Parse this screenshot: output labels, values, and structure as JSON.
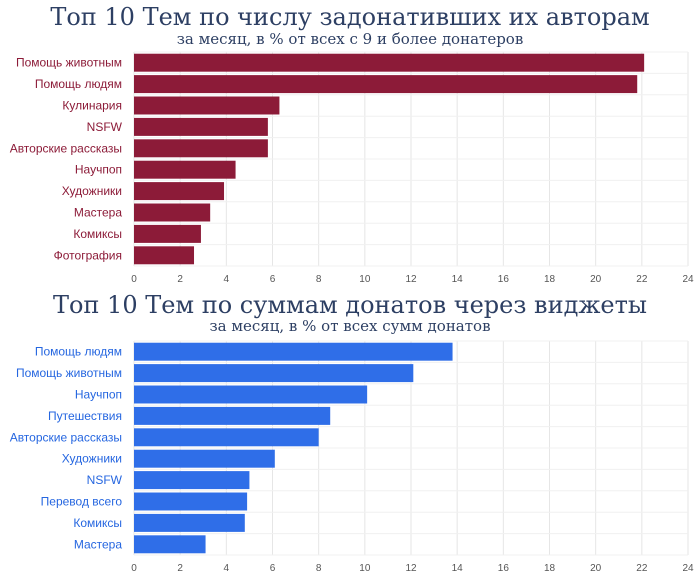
{
  "chart_data": [
    {
      "type": "bar",
      "orientation": "horizontal",
      "title": "Топ 10 Тем по числу задонативших их авторам",
      "subtitle": "за месяц, в % от всех с 9 и более донатеров",
      "categories": [
        "Помощь животным",
        "Помощь людям",
        "Кулинария",
        "NSFW",
        "Авторские рассказы",
        "Научпоп",
        "Художники",
        "Мастера",
        "Комиксы",
        "Фотография"
      ],
      "values": [
        22.1,
        21.8,
        6.3,
        5.8,
        5.8,
        4.4,
        3.9,
        3.3,
        2.9,
        2.6
      ],
      "xlim": [
        0,
        24
      ],
      "xticks": [
        "0",
        "2",
        "4",
        "6",
        "8",
        "10",
        "12",
        "14",
        "16",
        "18",
        "20",
        "22",
        "24"
      ],
      "grid": true,
      "bar_color": "#8c1b38",
      "label_color": "#8c1b38"
    },
    {
      "type": "bar",
      "orientation": "horizontal",
      "title": "Топ 10 Тем по суммам донатов через виджеты",
      "subtitle": "за месяц, в % от всех сумм донатов",
      "categories": [
        "Помощь людям",
        "Помощь животным",
        "Научпоп",
        "Путешествия",
        "Авторские рассказы",
        "Художники",
        "NSFW",
        "Перевод всего",
        "Комиксы",
        "Мастера"
      ],
      "values": [
        13.8,
        12.1,
        10.1,
        8.5,
        8.0,
        6.1,
        5.0,
        4.9,
        4.8,
        3.1
      ],
      "xlim": [
        0,
        24
      ],
      "xticks": [
        "0",
        "2",
        "4",
        "6",
        "8",
        "10",
        "12",
        "14",
        "16",
        "18",
        "20",
        "22",
        "24"
      ],
      "grid": true,
      "bar_color": "#2f6ee8",
      "label_color": "#2566e0"
    }
  ]
}
